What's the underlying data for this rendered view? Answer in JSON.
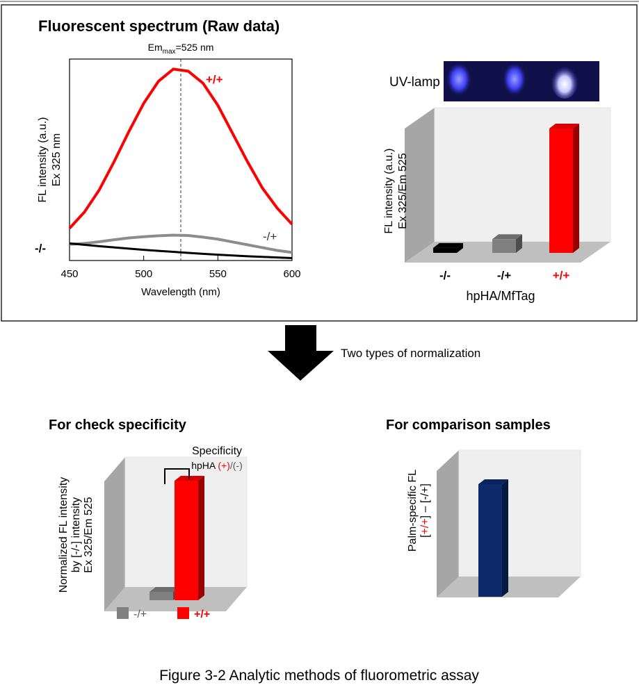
{
  "figure": {
    "uv_label": "UV-lamp",
    "arrow_label": "Two types of normalization",
    "caption": "Figure 3-2 Analytic methods of fluorometric assay"
  },
  "chart_data": [
    {
      "type": "line",
      "title": "Fluorescent spectrum (Raw data)",
      "xlabel": "Wavelength (nm)",
      "ylabel": [
        "FL intensity (a.u.)",
        "Ex 325 nm"
      ],
      "x": [
        450,
        460,
        470,
        480,
        490,
        500,
        510,
        520,
        530,
        540,
        550,
        560,
        570,
        580,
        590,
        600
      ],
      "xlim": [
        450,
        600
      ],
      "xticks": [
        450,
        500,
        550,
        600
      ],
      "ylim": [
        0,
        100
      ],
      "vline": {
        "x": 525,
        "label": "Em",
        "sub": "max",
        "rest": "=525 nm"
      },
      "series": [
        {
          "name": "+/+",
          "color": "#ff0000",
          "values": [
            16,
            24,
            35,
            49,
            64,
            78,
            89,
            95,
            94,
            88,
            77,
            63,
            49,
            36,
            26,
            18
          ]
        },
        {
          "name": "-/+",
          "color": "#8c8c8c",
          "values": [
            8,
            8.5,
            9.3,
            10.3,
            11.2,
            11.8,
            12.3,
            12.6,
            12.4,
            11.6,
            10.6,
            9.2,
            7.8,
            6.4,
            5,
            4
          ]
        },
        {
          "name": "-/-",
          "color": "#000000",
          "values": [
            8.5,
            7.8,
            7.1,
            6.5,
            5.9,
            5.3,
            4.8,
            4.3,
            3.8,
            3.3,
            2.9,
            2.5,
            2.1,
            1.8,
            1.5,
            1.2
          ]
        }
      ]
    },
    {
      "type": "bar3d",
      "ylabel": [
        "FL intensity (a.u.)",
        "Ex 325/Em 525"
      ],
      "xlabel": "hpHA/MfTag",
      "categories": [
        "-/-",
        "-/+",
        "+/+"
      ],
      "values": [
        4,
        11,
        100
      ],
      "colors": [
        "#000000",
        "#808080",
        "#ff0000"
      ],
      "label_colors": [
        "#000000",
        "#000000",
        "#ff0000"
      ],
      "ylim": [
        0,
        100
      ]
    },
    {
      "type": "bar3d",
      "title": "For check specificity",
      "ylabel": [
        "Normalized FL intensity",
        "by [-/-] intensity",
        "Ex 325/Em 525"
      ],
      "annotation": {
        "title": "Specificity",
        "segments": [
          {
            "text": "hpHA ",
            "color": "#000000"
          },
          {
            "text": "(+)",
            "color": "#ff0000"
          },
          {
            "text": "/(-)",
            "color": "#555555"
          }
        ]
      },
      "series": [
        {
          "name": "-/+",
          "color": "#808080",
          "values": [
            7
          ]
        },
        {
          "name": "+/+",
          "color": "#ff0000",
          "values": [
            100
          ]
        }
      ],
      "legend": "bottom",
      "ylim": [
        0,
        100
      ]
    },
    {
      "type": "bar3d",
      "title": "For comparison samples",
      "ylabel": [
        "Palm-specific FL",
        [
          {
            "text": "[",
            "color": "#000000"
          },
          {
            "text": "+/+",
            "color": "#ff0000"
          },
          {
            "text": "] – [-/+]",
            "color": "#000000"
          }
        ]
      ],
      "values": [
        100
      ],
      "colors": [
        "#0d2a6b"
      ],
      "ylim": [
        0,
        100
      ]
    }
  ]
}
